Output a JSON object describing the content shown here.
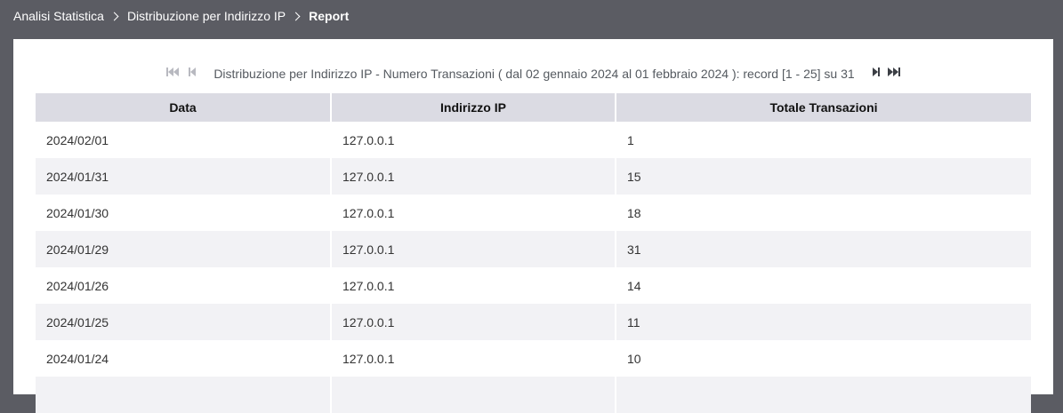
{
  "breadcrumb": {
    "items": [
      "Analisi Statistica",
      "Distribuzione per Indirizzo IP",
      "Report"
    ]
  },
  "pager": {
    "caption": "Distribuzione per Indirizzo IP - Numero Transazioni ( dal 02 gennaio 2024 al 01 febbraio 2024 ): record [1 - 25] su 31",
    "icons": [
      "first-page-icon",
      "previous-page-icon",
      "next-page-icon",
      "last-page-icon"
    ]
  },
  "table": {
    "columns": [
      "Data",
      "Indirizzo IP",
      "Totale Transazioni"
    ],
    "rows": [
      [
        "2024/02/01",
        "127.0.0.1",
        "1"
      ],
      [
        "2024/01/31",
        "127.0.0.1",
        "15"
      ],
      [
        "2024/01/30",
        "127.0.0.1",
        "18"
      ],
      [
        "2024/01/29",
        "127.0.0.1",
        "31"
      ],
      [
        "2024/01/26",
        "127.0.0.1",
        "14"
      ],
      [
        "2024/01/25",
        "127.0.0.1",
        "11"
      ],
      [
        "2024/01/24",
        "127.0.0.1",
        "10"
      ]
    ]
  },
  "colors": {
    "background": "#5b5c63",
    "header_row": "#dbdbe3",
    "stripe_row": "#f2f2f5",
    "icon_disabled": "#b8b9c0",
    "icon_active": "#3c3f45"
  }
}
